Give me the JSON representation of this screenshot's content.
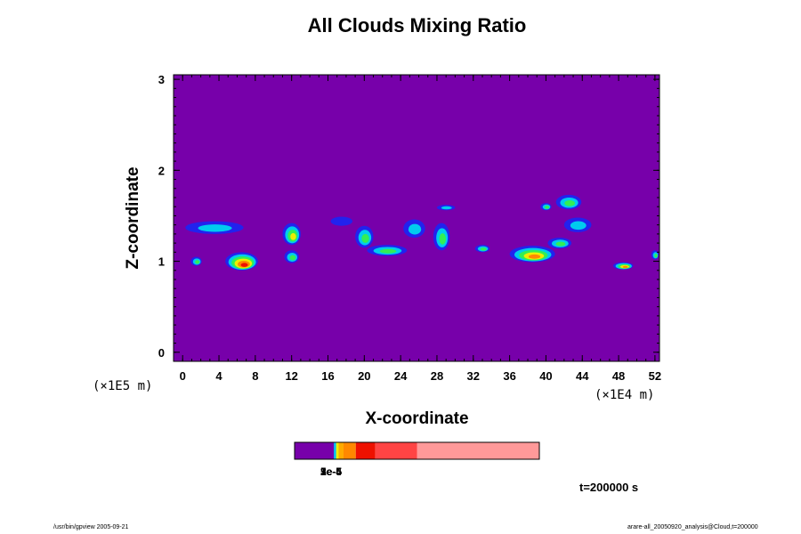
{
  "chart_data": {
    "type": "heatmap",
    "title": "All Clouds Mixing Ratio",
    "xlabel": "X-coordinate",
    "ylabel": "Z-coordinate",
    "x_unit": "(×1E4 m)",
    "z_unit": "(×1E5 m)",
    "xlim": [
      -1,
      52.5
    ],
    "ylim": [
      -0.1,
      3.05
    ],
    "x_ticks": [
      "0",
      "4",
      "8",
      "12",
      "16",
      "20",
      "24",
      "28",
      "32",
      "36",
      "40",
      "44",
      "48",
      "52"
    ],
    "y_ticks": [
      "0",
      "1",
      "2",
      "3"
    ],
    "time_label": "t=200000 s",
    "colorbar_labels": [
      "1e-5",
      "2e-5",
      "3e-5",
      "5e-4"
    ],
    "colors": {
      "background": "#7700aa",
      "level_blue": "#2222ee",
      "level_cyan": "#00ccee",
      "level_green": "#33ee55",
      "level_yellow": "#eeee00",
      "level_orange": "#ff8800",
      "level_red": "#ee1100",
      "level_salmon": "#ff4444",
      "level_pink": "#ff9999"
    },
    "cloud_features": [
      {
        "x": 3.5,
        "z": 1.37,
        "rx": 3.2,
        "rz": 0.07,
        "peak": 2
      },
      {
        "x": 6.5,
        "z": 1.0,
        "rx": 1.8,
        "rz": 0.1,
        "peak": 6
      },
      {
        "x": 1.5,
        "z": 1.0,
        "rx": 0.6,
        "rz": 0.05,
        "peak": 3
      },
      {
        "x": 12.0,
        "z": 1.3,
        "rx": 1.0,
        "rz": 0.12,
        "peak": 4
      },
      {
        "x": 12.0,
        "z": 1.05,
        "rx": 0.8,
        "rz": 0.07,
        "peak": 3
      },
      {
        "x": 17.5,
        "z": 1.44,
        "rx": 1.2,
        "rz": 0.05,
        "peak": 1
      },
      {
        "x": 20.0,
        "z": 1.27,
        "rx": 1.0,
        "rz": 0.12,
        "peak": 3
      },
      {
        "x": 22.5,
        "z": 1.12,
        "rx": 2.2,
        "rz": 0.06,
        "peak": 3
      },
      {
        "x": 25.5,
        "z": 1.36,
        "rx": 1.2,
        "rz": 0.1,
        "peak": 2
      },
      {
        "x": 28.5,
        "z": 1.27,
        "rx": 0.9,
        "rz": 0.15,
        "peak": 3
      },
      {
        "x": 29.0,
        "z": 1.59,
        "rx": 1.0,
        "rz": 0.03,
        "peak": 2
      },
      {
        "x": 33.0,
        "z": 1.14,
        "rx": 0.8,
        "rz": 0.04,
        "peak": 3
      },
      {
        "x": 38.5,
        "z": 1.08,
        "rx": 2.5,
        "rz": 0.09,
        "peak": 5
      },
      {
        "x": 41.5,
        "z": 1.2,
        "rx": 1.3,
        "rz": 0.06,
        "peak": 3
      },
      {
        "x": 42.5,
        "z": 1.65,
        "rx": 1.4,
        "rz": 0.08,
        "peak": 3
      },
      {
        "x": 43.5,
        "z": 1.4,
        "rx": 1.5,
        "rz": 0.08,
        "peak": 2
      },
      {
        "x": 48.5,
        "z": 0.95,
        "rx": 1.1,
        "rz": 0.04,
        "peak": 5
      },
      {
        "x": 52.0,
        "z": 1.07,
        "rx": 0.4,
        "rz": 0.05,
        "peak": 3
      },
      {
        "x": 40.0,
        "z": 1.6,
        "rx": 0.6,
        "rz": 0.04,
        "peak": 3
      }
    ],
    "colorbar": {
      "segments": [
        {
          "from": 0,
          "to": 0.16,
          "color": "#7700aa"
        },
        {
          "from": 0.16,
          "to": 0.17,
          "color": "#00bbee"
        },
        {
          "from": 0.17,
          "to": 0.18,
          "color": "#eeee00"
        },
        {
          "from": 0.18,
          "to": 0.2,
          "color": "#ffaa00"
        },
        {
          "from": 0.2,
          "to": 0.25,
          "color": "#ff8800"
        },
        {
          "from": 0.25,
          "to": 0.33,
          "color": "#ee1100"
        },
        {
          "from": 0.33,
          "to": 0.5,
          "color": "#ff4444"
        },
        {
          "from": 0.5,
          "to": 1,
          "color": "#ff9999"
        }
      ]
    }
  },
  "footer": {
    "left": "/usr/bin/gpview 2005-09-21",
    "right": "arare-all_20050920_analysis@Cloud,t=200000"
  }
}
